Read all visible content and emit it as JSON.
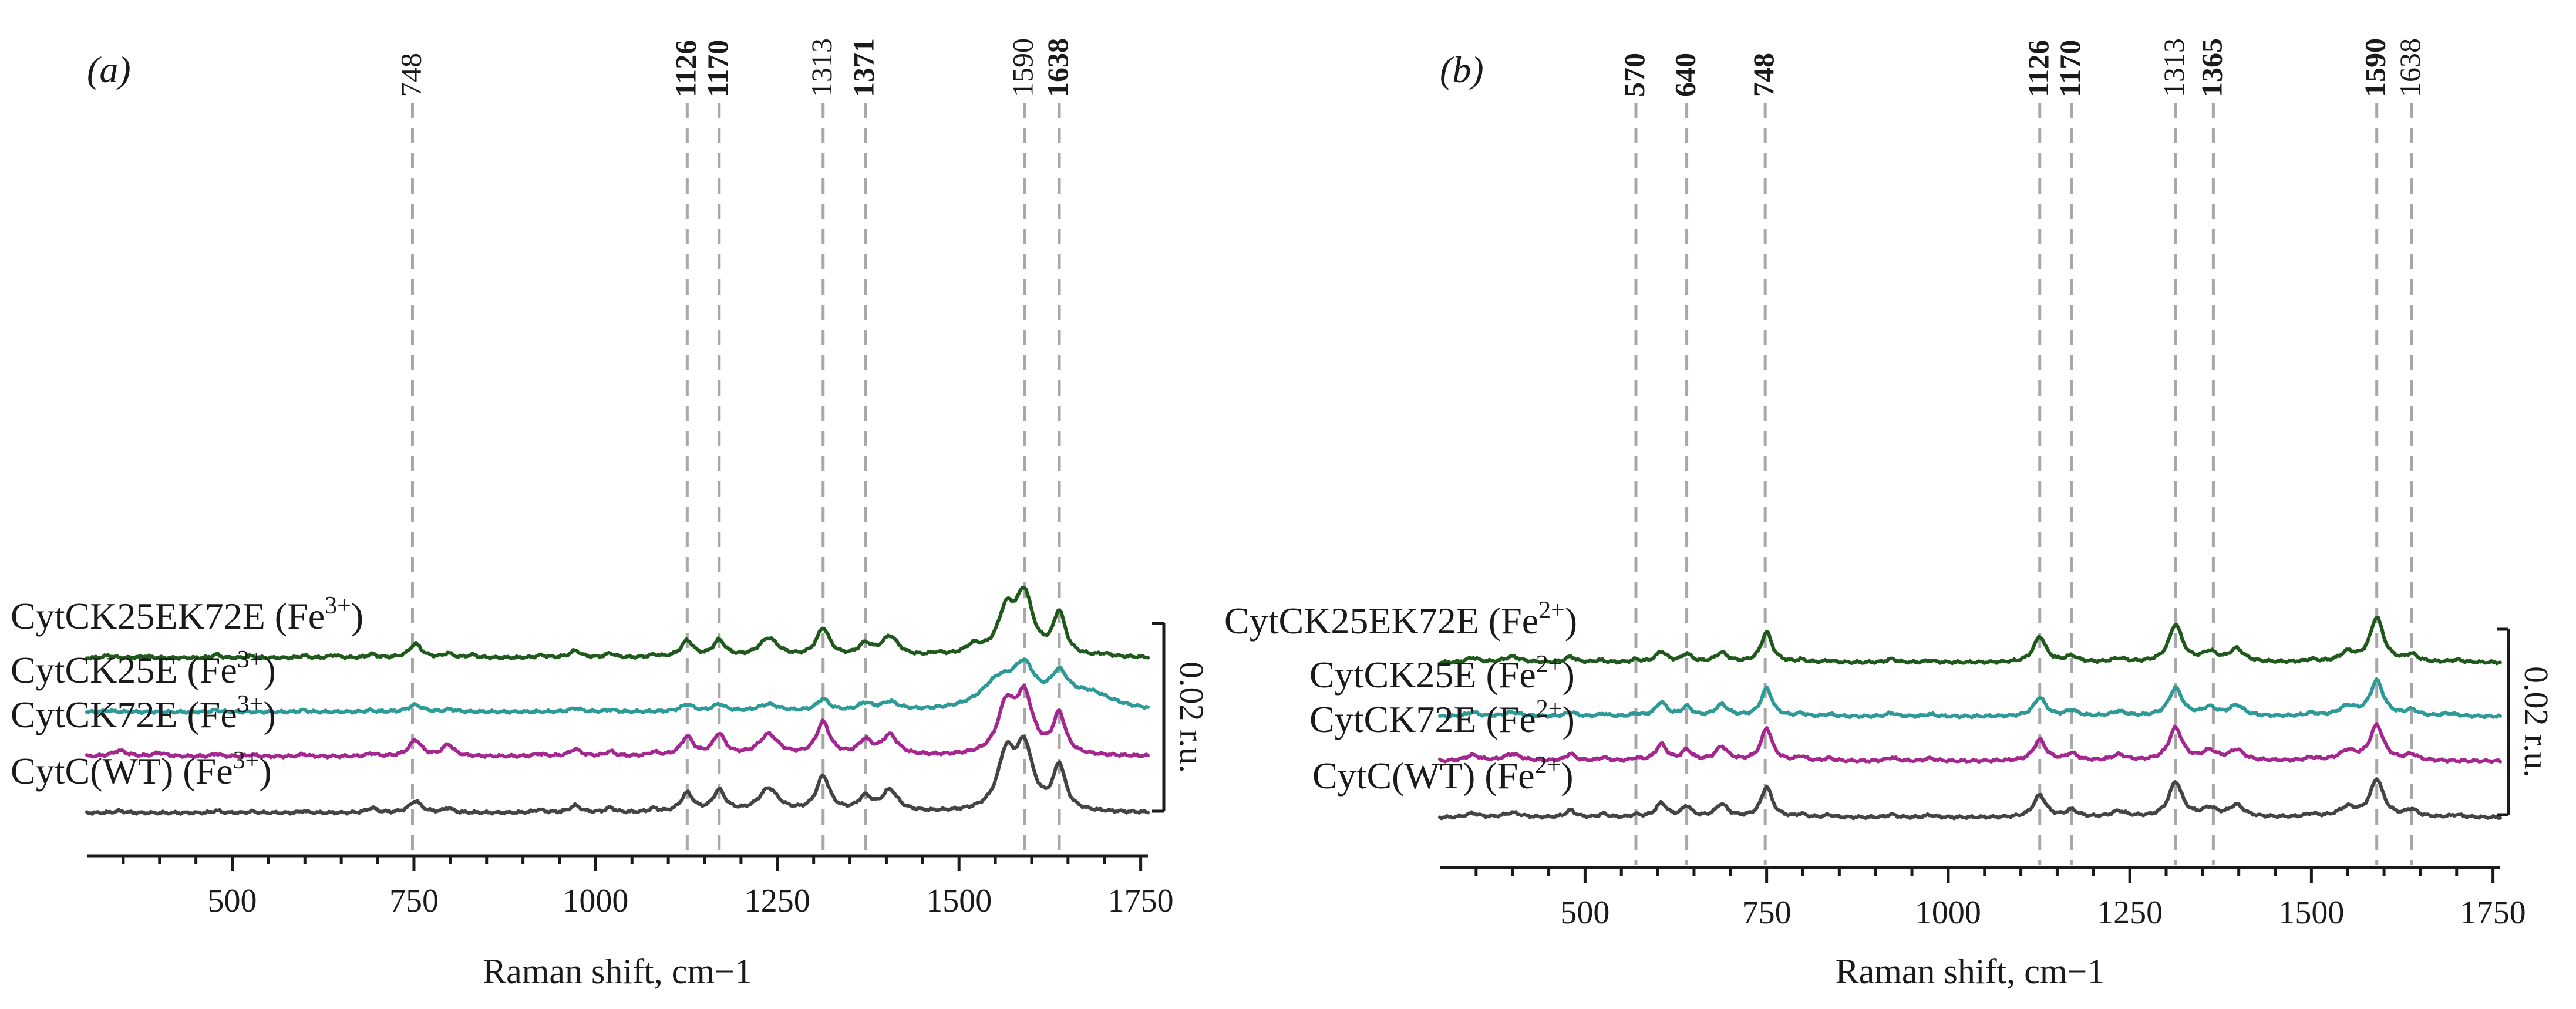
{
  "figure": {
    "x_axis_label": "Raman shift, cm−1",
    "scale_bar_label": "0.02 r.u.",
    "series_colors": {
      "CytCK25EK72E": "#1f5a1c",
      "CytCK25E": "#2e9a98",
      "CytCK72E": "#a4268f",
      "CytC(WT)": "#444444"
    },
    "guide_line_color": "#a8a8a8"
  },
  "chart_data": [
    {
      "type": "line",
      "panel_label": "(a)",
      "xlabel": "Raman shift, cm−1",
      "xlim": [
        300,
        1760
      ],
      "x_ticks": [
        500,
        750,
        1000,
        1250,
        1500,
        1750
      ],
      "y_axis": "vertically offset traces, scale bar 0.02 r.u.",
      "peak_markers": [
        {
          "label": "748",
          "value": 748,
          "bold": false
        },
        {
          "label": "1126",
          "value": 1126,
          "bold": true
        },
        {
          "label": "1170",
          "value": 1170,
          "bold": true
        },
        {
          "label": "1313",
          "value": 1313,
          "bold": false
        },
        {
          "label": "1371",
          "value": 1371,
          "bold": true
        },
        {
          "label": "1590",
          "value": 1590,
          "bold": false
        },
        {
          "label": "1638",
          "value": 1638,
          "bold": true
        }
      ],
      "series": [
        {
          "name": "CytCK25EK72E",
          "state": "Fe",
          "charge": "3+",
          "color": "#1f5a1c",
          "offset": 0.066,
          "peaks": [
            [
              330,
              0.001,
              8
            ],
            [
              380,
              0.0008,
              8
            ],
            [
              478,
              0.0015,
              6
            ],
            [
              527,
              0.0008,
              6
            ],
            [
              598,
              0.001,
              6
            ],
            [
              640,
              0.0012,
              7
            ],
            [
              692,
              0.0015,
              7
            ],
            [
              752,
              0.006,
              10
            ],
            [
              797,
              0.0018,
              7
            ],
            [
              830,
              0.0012,
              7
            ],
            [
              925,
              0.001,
              8
            ],
            [
              972,
              0.003,
              9
            ],
            [
              1020,
              0.0018,
              7
            ],
            [
              1080,
              0.001,
              7
            ],
            [
              1126,
              0.007,
              10
            ],
            [
              1170,
              0.007,
              10
            ],
            [
              1238,
              0.008,
              16
            ],
            [
              1313,
              0.012,
              11
            ],
            [
              1371,
              0.005,
              11
            ],
            [
              1405,
              0.0085,
              14
            ],
            [
              1470,
              0.0012,
              12
            ],
            [
              1520,
              0.004,
              14
            ],
            [
              1565,
              0.018,
              14
            ],
            [
              1590,
              0.025,
              14
            ],
            [
              1638,
              0.018,
              10
            ],
            [
              1700,
              0.001,
              10
            ]
          ]
        },
        {
          "name": "CytCK25E",
          "state": "Fe",
          "charge": "3+",
          "color": "#2e9a98",
          "offset": 0.043,
          "peaks": [
            [
              330,
              0.0006,
              8
            ],
            [
              478,
              0.0008,
              6
            ],
            [
              598,
              0.0007,
              6
            ],
            [
              690,
              0.0006,
              7
            ],
            [
              752,
              0.003,
              11
            ],
            [
              800,
              0.001,
              8
            ],
            [
              972,
              0.0015,
              9
            ],
            [
              1020,
              0.0008,
              7
            ],
            [
              1126,
              0.003,
              10
            ],
            [
              1170,
              0.003,
              10
            ],
            [
              1238,
              0.003,
              16
            ],
            [
              1313,
              0.005,
              10
            ],
            [
              1371,
              0.003,
              11
            ],
            [
              1405,
              0.0035,
              14
            ],
            [
              1555,
              0.012,
              30
            ],
            [
              1590,
              0.015,
              18
            ],
            [
              1638,
              0.012,
              15
            ],
            [
              1680,
              0.007,
              40
            ]
          ]
        },
        {
          "name": "CytCK72E",
          "state": "Fe",
          "charge": "3+",
          "color": "#a4268f",
          "offset": 0.024,
          "peaks": [
            [
              345,
              0.0025,
              12
            ],
            [
              400,
              0.0015,
              10
            ],
            [
              478,
              0.0012,
              6
            ],
            [
              527,
              0.0008,
              6
            ],
            [
              598,
              0.001,
              6
            ],
            [
              692,
              0.0012,
              7
            ],
            [
              752,
              0.007,
              10
            ],
            [
              797,
              0.005,
              9
            ],
            [
              922,
              0.001,
              8
            ],
            [
              972,
              0.003,
              9
            ],
            [
              1020,
              0.002,
              7
            ],
            [
              1080,
              0.0015,
              7
            ],
            [
              1126,
              0.008,
              10
            ],
            [
              1170,
              0.009,
              10
            ],
            [
              1238,
              0.009,
              16
            ],
            [
              1313,
              0.014,
              11
            ],
            [
              1371,
              0.006,
              11
            ],
            [
              1405,
              0.0085,
              13
            ],
            [
              1565,
              0.02,
              14
            ],
            [
              1590,
              0.024,
              14
            ],
            [
              1638,
              0.017,
              10
            ]
          ]
        },
        {
          "name": "CytC(WT)",
          "state": "Fe",
          "charge": "3+",
          "color": "#444444",
          "offset": 0.0,
          "peaks": [
            [
              345,
              0.0008,
              10
            ],
            [
              478,
              0.001,
              6
            ],
            [
              527,
              0.0006,
              6
            ],
            [
              598,
              0.0008,
              6
            ],
            [
              692,
              0.002,
              8
            ],
            [
              752,
              0.005,
              10
            ],
            [
              797,
              0.002,
              7
            ],
            [
              922,
              0.0012,
              8
            ],
            [
              972,
              0.003,
              9
            ],
            [
              1020,
              0.002,
              7
            ],
            [
              1080,
              0.0015,
              7
            ],
            [
              1126,
              0.008,
              10
            ],
            [
              1170,
              0.009,
              10
            ],
            [
              1238,
              0.01,
              16
            ],
            [
              1313,
              0.015,
              11
            ],
            [
              1371,
              0.006,
              11
            ],
            [
              1405,
              0.009,
              13
            ],
            [
              1565,
              0.023,
              14
            ],
            [
              1590,
              0.026,
              14
            ],
            [
              1638,
              0.019,
              10
            ]
          ]
        }
      ]
    },
    {
      "type": "line",
      "panel_label": "(b)",
      "xlabel": "Raman shift, cm−1",
      "xlim": [
        300,
        1760
      ],
      "x_ticks": [
        500,
        750,
        1000,
        1250,
        1500,
        1750
      ],
      "y_axis": "vertically offset traces, scale bar 0.02 r.u.",
      "peak_markers": [
        {
          "label": "570",
          "value": 570,
          "bold": true
        },
        {
          "label": "640",
          "value": 640,
          "bold": true
        },
        {
          "label": "748",
          "value": 748,
          "bold": true
        },
        {
          "label": "1126",
          "value": 1126,
          "bold": true
        },
        {
          "label": "1170",
          "value": 1170,
          "bold": true
        },
        {
          "label": "1313",
          "value": 1313,
          "bold": false
        },
        {
          "label": "1365",
          "value": 1365,
          "bold": true
        },
        {
          "label": "1590",
          "value": 1590,
          "bold": true
        },
        {
          "label": "1638",
          "value": 1638,
          "bold": false
        }
      ],
      "series": [
        {
          "name": "CytCK25EK72E",
          "state": "Fe",
          "charge": "2+",
          "color": "#1f5a1c",
          "offset": 0.066,
          "peaks": [
            [
              345,
              0.002,
              10
            ],
            [
              400,
              0.0025,
              14
            ],
            [
              480,
              0.0025,
              8
            ],
            [
              520,
              0.001,
              7
            ],
            [
              570,
              0.0012,
              7
            ],
            [
              605,
              0.0045,
              9
            ],
            [
              640,
              0.0035,
              8
            ],
            [
              688,
              0.004,
              10
            ],
            [
              750,
              0.013,
              9
            ],
            [
              798,
              0.001,
              7
            ],
            [
              836,
              0.0008,
              7
            ],
            [
              922,
              0.0015,
              8
            ],
            [
              975,
              0.0008,
              8
            ],
            [
              1126,
              0.011,
              10
            ],
            [
              1170,
              0.0025,
              10
            ],
            [
              1235,
              0.0015,
              12
            ],
            [
              1313,
              0.016,
              11
            ],
            [
              1360,
              0.004,
              12
            ],
            [
              1397,
              0.0055,
              12
            ],
            [
              1500,
              0.001,
              10
            ],
            [
              1550,
              0.004,
              12
            ],
            [
              1590,
              0.019,
              11
            ],
            [
              1638,
              0.003,
              10
            ],
            [
              1700,
              0.001,
              10
            ]
          ]
        },
        {
          "name": "CytCK25E",
          "state": "Fe",
          "charge": "2+",
          "color": "#2e9a98",
          "offset": 0.043,
          "peaks": [
            [
              345,
              0.0018,
              10
            ],
            [
              400,
              0.0018,
              14
            ],
            [
              480,
              0.002,
              8
            ],
            [
              525,
              0.0012,
              7
            ],
            [
              570,
              0.001,
              7
            ],
            [
              605,
              0.006,
              9
            ],
            [
              640,
              0.004,
              8
            ],
            [
              688,
              0.005,
              10
            ],
            [
              750,
              0.012,
              9
            ],
            [
              798,
              0.0012,
              7
            ],
            [
              836,
              0.001,
              7
            ],
            [
              922,
              0.0015,
              8
            ],
            [
              975,
              0.001,
              8
            ],
            [
              1126,
              0.008,
              10
            ],
            [
              1170,
              0.0025,
              10
            ],
            [
              1235,
              0.002,
              12
            ],
            [
              1313,
              0.012,
              11
            ],
            [
              1360,
              0.0035,
              12
            ],
            [
              1397,
              0.0045,
              12
            ],
            [
              1500,
              0.0012,
              10
            ],
            [
              1550,
              0.004,
              14
            ],
            [
              1590,
              0.015,
              11
            ],
            [
              1638,
              0.0025,
              10
            ],
            [
              1690,
              0.0012,
              12
            ]
          ]
        },
        {
          "name": "CytCK72E",
          "state": "Fe",
          "charge": "2+",
          "color": "#a4268f",
          "offset": 0.024,
          "peaks": [
            [
              345,
              0.0025,
              12
            ],
            [
              400,
              0.003,
              14
            ],
            [
              480,
              0.003,
              8
            ],
            [
              525,
              0.0015,
              7
            ],
            [
              570,
              0.001,
              7
            ],
            [
              605,
              0.007,
              9
            ],
            [
              640,
              0.0045,
              8
            ],
            [
              688,
              0.006,
              10
            ],
            [
              750,
              0.014,
              9
            ],
            [
              798,
              0.0018,
              7
            ],
            [
              836,
              0.0012,
              7
            ],
            [
              922,
              0.0015,
              8
            ],
            [
              975,
              0.0012,
              8
            ],
            [
              1126,
              0.009,
              10
            ],
            [
              1170,
              0.003,
              10
            ],
            [
              1235,
              0.0025,
              12
            ],
            [
              1313,
              0.014,
              11
            ],
            [
              1360,
              0.004,
              12
            ],
            [
              1397,
              0.0045,
              12
            ],
            [
              1500,
              0.0012,
              10
            ],
            [
              1550,
              0.004,
              14
            ],
            [
              1590,
              0.015,
              11
            ],
            [
              1638,
              0.0025,
              10
            ]
          ]
        },
        {
          "name": "CytC(WT)",
          "state": "Fe",
          "charge": "2+",
          "color": "#444444",
          "offset": 0.0,
          "peaks": [
            [
              345,
              0.0018,
              10
            ],
            [
              400,
              0.002,
              14
            ],
            [
              480,
              0.003,
              8
            ],
            [
              525,
              0.0015,
              7
            ],
            [
              570,
              0.001,
              7
            ],
            [
              605,
              0.006,
              9
            ],
            [
              640,
              0.0045,
              8
            ],
            [
              688,
              0.0055,
              10
            ],
            [
              750,
              0.013,
              9
            ],
            [
              798,
              0.0012,
              7
            ],
            [
              836,
              0.001,
              7
            ],
            [
              922,
              0.0012,
              8
            ],
            [
              975,
              0.001,
              8
            ],
            [
              1126,
              0.0095,
              10
            ],
            [
              1170,
              0.003,
              10
            ],
            [
              1235,
              0.0025,
              12
            ],
            [
              1313,
              0.015,
              11
            ],
            [
              1360,
              0.0035,
              12
            ],
            [
              1397,
              0.005,
              12
            ],
            [
              1500,
              0.0012,
              10
            ],
            [
              1550,
              0.004,
              14
            ],
            [
              1590,
              0.016,
              11
            ],
            [
              1638,
              0.003,
              10
            ],
            [
              1700,
              0.001,
              10
            ]
          ]
        }
      ]
    }
  ]
}
